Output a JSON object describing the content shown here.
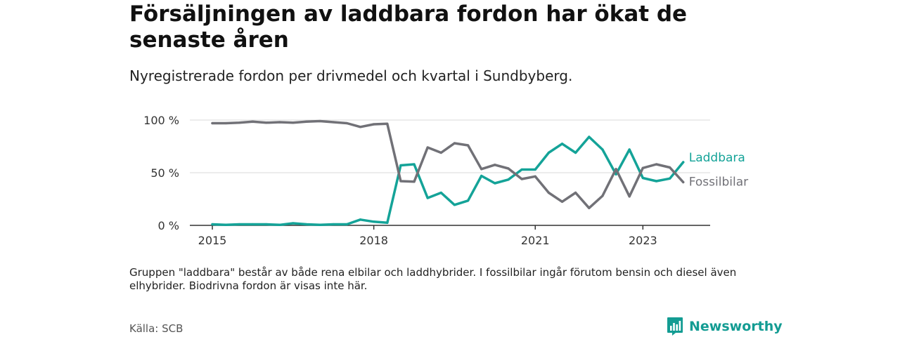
{
  "title": "Försäljningen av laddbara fordon har ökat de senaste åren",
  "subtitle": "Nyregistrerade fordon per drivmedel och kvartal i Sundbyberg.",
  "note": "Gruppen \"laddbara\" består av både rena elbilar och laddhybrider. I fossilbilar ingår förutom bensin och diesel även elhybrider. Biodrivna fordon är visas inte här.",
  "source": "Källa: SCB",
  "brand": {
    "name": "Newsworthy",
    "logo_icon": "newsworthy-bar-chart-icon",
    "color": "#139c93"
  },
  "chart_data": {
    "type": "line",
    "title": "Försäljningen av laddbara fordon har ökat de senaste åren",
    "subtitle": "Nyregistrerade fordon per drivmedel och kvartal i Sundbyberg.",
    "x_axis": {
      "min": 2015.0,
      "max": 2024.25,
      "ticks": [
        {
          "value": 2015,
          "label": "2015"
        },
        {
          "value": 2018,
          "label": "2018"
        },
        {
          "value": 2021,
          "label": "2021"
        },
        {
          "value": 2023,
          "label": "2023"
        }
      ]
    },
    "y_axis": {
      "min": 0,
      "max": 100,
      "ticks": [
        {
          "value": 0,
          "label": "0 %"
        },
        {
          "value": 50,
          "label": "50 %"
        },
        {
          "value": 100,
          "label": "100 %"
        }
      ]
    },
    "grid": true,
    "x": [
      2015.0,
      2015.25,
      2015.5,
      2015.75,
      2016.0,
      2016.25,
      2016.5,
      2016.75,
      2017.0,
      2017.25,
      2017.5,
      2017.75,
      2018.0,
      2018.25,
      2018.5,
      2018.75,
      2019.0,
      2019.25,
      2019.5,
      2019.75,
      2020.0,
      2020.25,
      2020.5,
      2020.75,
      2021.0,
      2021.25,
      2021.5,
      2021.75,
      2022.0,
      2022.25,
      2022.5,
      2022.75,
      2023.0,
      2023.25,
      2023.5,
      2023.75
    ],
    "series": [
      {
        "name": "Laddbara",
        "color": "#14a398",
        "values": [
          1,
          0.5,
          1,
          1,
          1,
          0.5,
          2,
          1,
          0.5,
          1,
          1,
          5.5,
          3.5,
          2.5,
          57,
          58,
          26,
          31,
          19.5,
          23.5,
          47,
          40,
          43.5,
          53,
          53,
          69,
          77.5,
          69,
          84,
          72,
          48.5,
          72,
          45,
          42,
          44.5,
          60
        ]
      },
      {
        "name": "Fossilbilar",
        "color": "#717177",
        "values": [
          97,
          97,
          97.5,
          98.5,
          97.5,
          98,
          97.5,
          98.5,
          99,
          98,
          97,
          93.5,
          96,
          96.5,
          42,
          41.5,
          74,
          69,
          78,
          76,
          53.5,
          57.5,
          54,
          44,
          46.5,
          31,
          22.5,
          31,
          16.5,
          28,
          53.5,
          27.5,
          54.5,
          58,
          55,
          41
        ]
      }
    ],
    "legend": "inline-right"
  }
}
